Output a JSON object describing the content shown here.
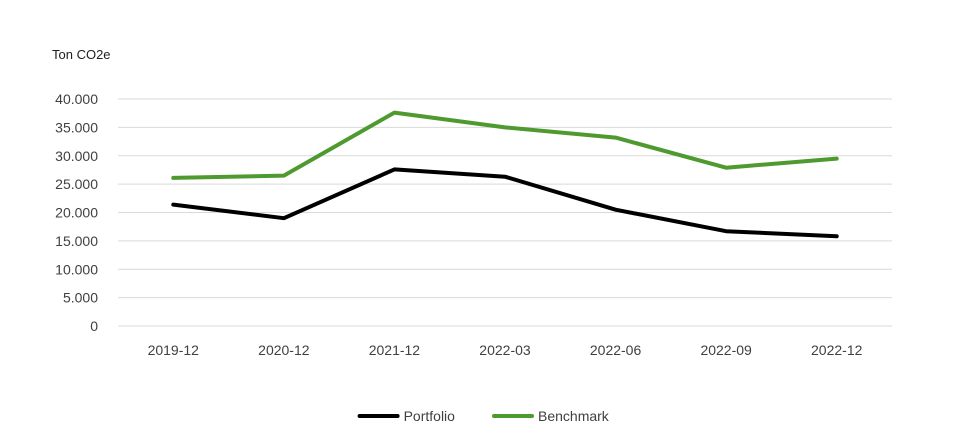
{
  "chart_data": {
    "type": "line",
    "ylabel": "Ton CO2e",
    "categories": [
      "2019-12",
      "2020-12",
      "2021-12",
      "2022-03",
      "2022-06",
      "2022-09",
      "2022-12"
    ],
    "ylim": [
      0,
      40000
    ],
    "ytick_values": [
      0,
      5000,
      10000,
      15000,
      20000,
      25000,
      30000,
      35000,
      40000
    ],
    "ytick_labels": [
      "0",
      "5.000",
      "10.000",
      "15.000",
      "20.000",
      "25.000",
      "30.000",
      "35.000",
      "40.000"
    ],
    "grid": true,
    "legend_position": "bottom",
    "series": [
      {
        "name": "Portfolio",
        "color": "#000000",
        "values": [
          21400,
          19000,
          27600,
          26300,
          20500,
          16700,
          15800
        ]
      },
      {
        "name": "Benchmark",
        "color": "#4e9a2f",
        "values": [
          26100,
          26500,
          37600,
          35000,
          33200,
          27900,
          29500
        ]
      }
    ]
  }
}
